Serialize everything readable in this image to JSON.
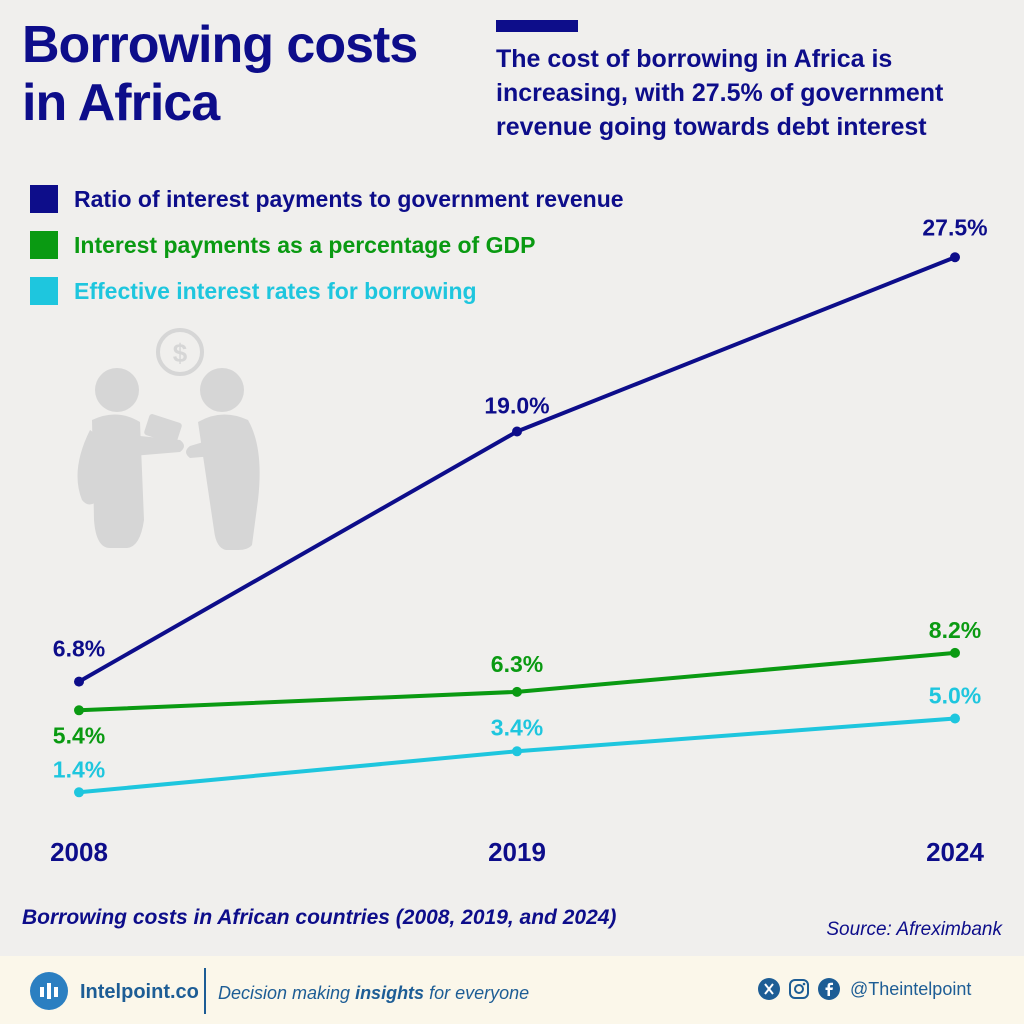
{
  "header": {
    "title": "Borrowing costs in Africa",
    "subtitle": "The cost of borrowing in Africa is increasing, with 27.5% of government revenue going towards debt interest"
  },
  "colors": {
    "navy": "#0d0d8a",
    "green": "#0a9a12",
    "cyan": "#1ec6de",
    "background": "#f0efed",
    "footer_bg": "#fbf7ea",
    "brand_blue": "#1d5d95"
  },
  "chart_data": {
    "type": "line",
    "x": [
      "2008",
      "2019",
      "2024"
    ],
    "series": [
      {
        "name": "Ratio of interest payments to government revenue",
        "values": [
          6.8,
          19.0,
          27.5
        ],
        "labels": [
          "6.8%",
          "19.0%",
          "27.5%"
        ],
        "color": "#0d0d8a"
      },
      {
        "name": "Interest payments as a percentage of GDP",
        "values": [
          5.4,
          6.3,
          8.2
        ],
        "labels": [
          "5.4%",
          "6.3%",
          "8.2%"
        ],
        "color": "#0a9a12"
      },
      {
        "name": "Effective interest rates for borrowing",
        "values": [
          1.4,
          3.4,
          5.0
        ],
        "labels": [
          "1.4%",
          "3.4%",
          "5.0%"
        ],
        "color": "#1ec6de"
      }
    ],
    "legend_position": "top-left",
    "grid": false,
    "caption": "Borrowing costs in African countries (2008, 2019, and 2024)"
  },
  "source": "Source: Afreximbank",
  "footer": {
    "brand": "Intelpoint.co",
    "tagline_pre": "Decision making ",
    "tagline_bold": "insights",
    "tagline_post": " for everyone",
    "social_icons": [
      "x-icon",
      "instagram-icon",
      "facebook-icon"
    ],
    "handle": "@Theintelpoint"
  }
}
